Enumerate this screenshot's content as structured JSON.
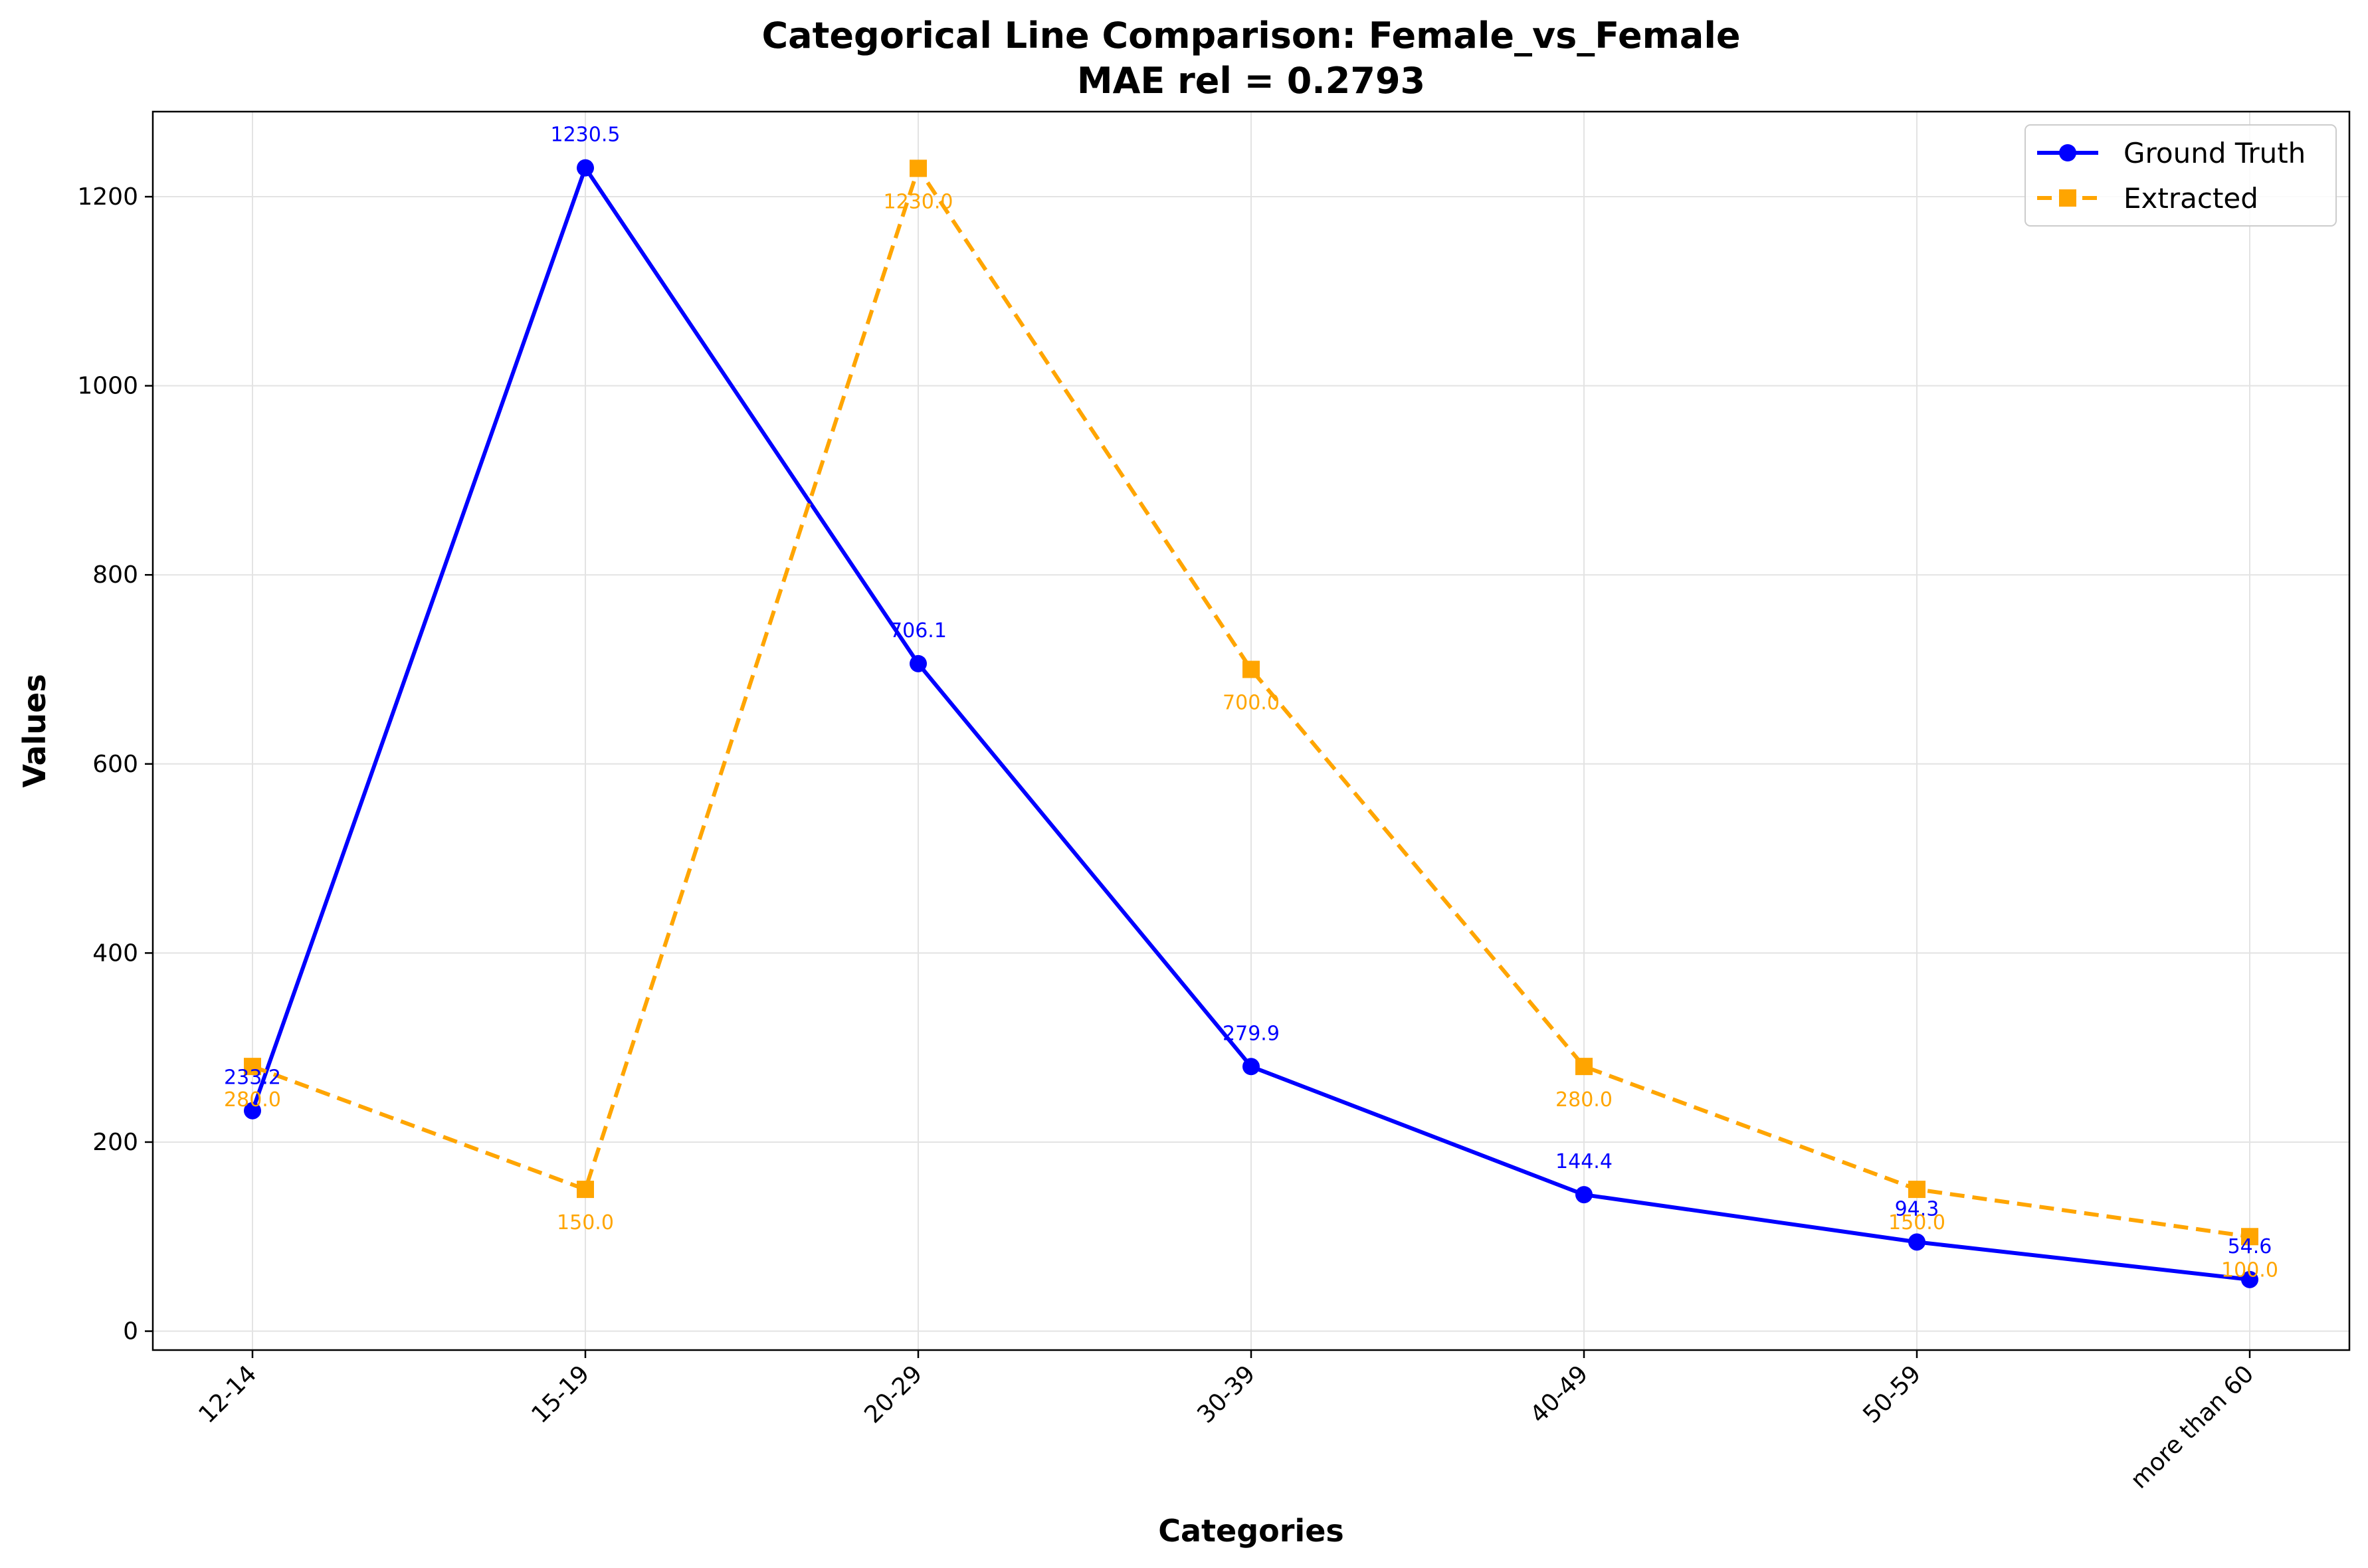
{
  "chart_data": {
    "type": "line",
    "title": "Categorical Line Comparison: Female_vs_Female",
    "subtitle": "MAE rel = 0.2793",
    "xlabel": "Categories",
    "ylabel": "Values",
    "categories": [
      "12-14",
      "15-19",
      "20-29",
      "30-39",
      "40-49",
      "50-59",
      "more than 60"
    ],
    "ylim": [
      -20,
      1290
    ],
    "yticks": [
      0,
      200,
      400,
      600,
      800,
      1000,
      1200
    ],
    "grid": true,
    "legend_position": "top-right",
    "series": [
      {
        "name": "Ground Truth",
        "values": [
          233.2,
          1230.5,
          706.1,
          279.9,
          144.4,
          94.3,
          54.6
        ],
        "labels": [
          "233.2",
          "1230.5",
          "706.1",
          "279.9",
          "144.4",
          "94.3",
          "54.6"
        ],
        "color": "#0000ff",
        "line_style": "solid",
        "marker": "circle",
        "label_position": "above"
      },
      {
        "name": "Extracted",
        "values": [
          280.0,
          150.0,
          1230.0,
          700.0,
          280.0,
          150.0,
          100.0
        ],
        "labels": [
          "280.0",
          "150.0",
          "1230.0",
          "700.0",
          "280.0",
          "150.0",
          "100.0"
        ],
        "color": "#ffa500",
        "line_style": "dashed",
        "marker": "square",
        "label_position": "below"
      }
    ]
  }
}
